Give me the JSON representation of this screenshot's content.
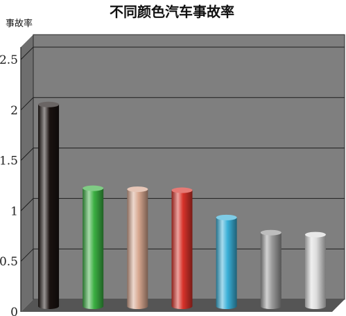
{
  "chart_data": {
    "type": "bar",
    "title": "不同颜色汽车事故率",
    "ylabel": "事故率",
    "xlabel": "",
    "categories": [
      "",
      "",
      "",
      "",
      "",
      "",
      ""
    ],
    "values": [
      2.0,
      1.17,
      1.16,
      1.15,
      0.88,
      0.73,
      0.71
    ],
    "bar_colors": [
      "#1a1210",
      "#3cb043",
      "#d8a890",
      "#d8322a",
      "#3ab0d8",
      "#9a9a9a",
      "#dcdcdc"
    ],
    "ylim": [
      0,
      2.5
    ],
    "yticks": [
      {
        "value": 0,
        "label": "0"
      },
      {
        "value": 0.5,
        "label": "0.5"
      },
      {
        "value": 1,
        "label": "1"
      },
      {
        "value": 1.5,
        "label": "1.5"
      },
      {
        "value": 2,
        "label": "2"
      },
      {
        "value": 2.5,
        "label": "2.5"
      }
    ],
    "grid": true,
    "background_color": "#7f7f7f",
    "floor_color": "#555555"
  }
}
